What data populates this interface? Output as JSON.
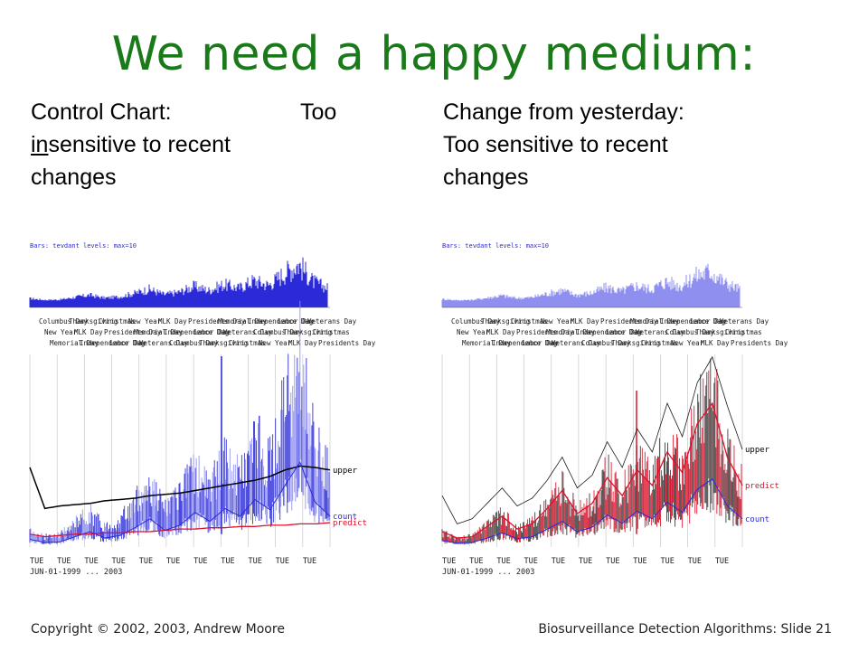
{
  "slide": {
    "title": "We need a happy medium:",
    "left_caption": {
      "line1": "Control Chart:",
      "too": "Too",
      "line2_underlined": "in",
      "line2_rest": "sensitive to recent",
      "line3": "changes"
    },
    "right_caption": {
      "line1": "Change from yesterday:",
      "line2": "Too sensitive to recent",
      "line3": "changes"
    },
    "footer_left": "Copyright © 2002, 2003, Andrew  Moore",
    "footer_right": "Biosurveillance Detection Algorithms: Slide 21"
  },
  "colors": {
    "title": "#1a7a1a",
    "count": "#2a2ad8",
    "count_light": "#8f8ff0",
    "upper": "#000000",
    "predict": "#e0102a",
    "grid": "#c8c8c8"
  },
  "chart_data": [
    {
      "type": "line",
      "panel": "left",
      "top_label": "Bars: tevdant levels: max=10",
      "x_tick_day_labels": [
        "TUE",
        "TUE",
        "TUE",
        "TUE",
        "TUE",
        "TUE",
        "TUE",
        "TUE",
        "TUE",
        "TUE",
        "TUE"
      ],
      "x_range_label": "JUN-01-1999 ... 2003",
      "holiday_labels": [
        "Columbus Day",
        "Thanksgiving",
        "Christmas",
        "New Year",
        "MLK Day",
        "Presidents Day",
        "Memorial Day",
        "Independence Day",
        "Labor Day",
        "Veterans Day"
      ],
      "series": [
        {
          "name": "upper",
          "values": [
            62,
            30,
            32,
            33,
            34,
            36,
            37,
            38,
            40,
            41,
            42,
            44,
            46,
            48,
            50,
            52,
            55,
            60,
            63,
            62,
            60
          ]
        },
        {
          "name": "predict",
          "values": [
            10,
            8,
            9,
            10,
            10,
            11,
            11,
            12,
            12,
            13,
            14,
            14,
            15,
            15,
            16,
            16,
            17,
            17,
            18,
            18,
            19
          ]
        },
        {
          "name": "count",
          "values": [
            12,
            7,
            8,
            16,
            24,
            14,
            18,
            30,
            44,
            26,
            34,
            54,
            40,
            60,
            48,
            74,
            58,
            96,
            132,
            70,
            48
          ]
        }
      ],
      "ylim": [
        0,
        150
      ]
    },
    {
      "type": "line",
      "panel": "right",
      "top_label": "Bars: tevdant levels: max=10",
      "x_tick_day_labels": [
        "TUE",
        "TUE",
        "TUE",
        "TUE",
        "TUE",
        "TUE",
        "TUE",
        "TUE",
        "TUE",
        "TUE",
        "TUE"
      ],
      "x_range_label": "JUN-01-1999 ... 2003",
      "holiday_labels": [
        "Columbus Day",
        "Thanksgiving",
        "Christmas",
        "New Year",
        "MLK Day",
        "Presidents Day",
        "Memorial Day",
        "Independence Day",
        "Labor Day",
        "Veterans Day"
      ],
      "series": [
        {
          "name": "upper",
          "values": [
            40,
            18,
            22,
            34,
            46,
            32,
            38,
            52,
            70,
            46,
            56,
            82,
            62,
            92,
            74,
            112,
            86,
            128,
            148,
            110,
            76
          ]
        },
        {
          "name": "predict",
          "values": [
            12,
            7,
            8,
            16,
            24,
            14,
            18,
            30,
            44,
            26,
            34,
            54,
            40,
            60,
            48,
            74,
            58,
            96,
            112,
            70,
            48
          ]
        },
        {
          "name": "count",
          "values": [
            10,
            6,
            7,
            14,
            22,
            13,
            16,
            28,
            40,
            24,
            31,
            50,
            37,
            56,
            44,
            70,
            54,
            90,
            106,
            64,
            44
          ]
        }
      ],
      "ylim": [
        0,
        150
      ]
    }
  ]
}
